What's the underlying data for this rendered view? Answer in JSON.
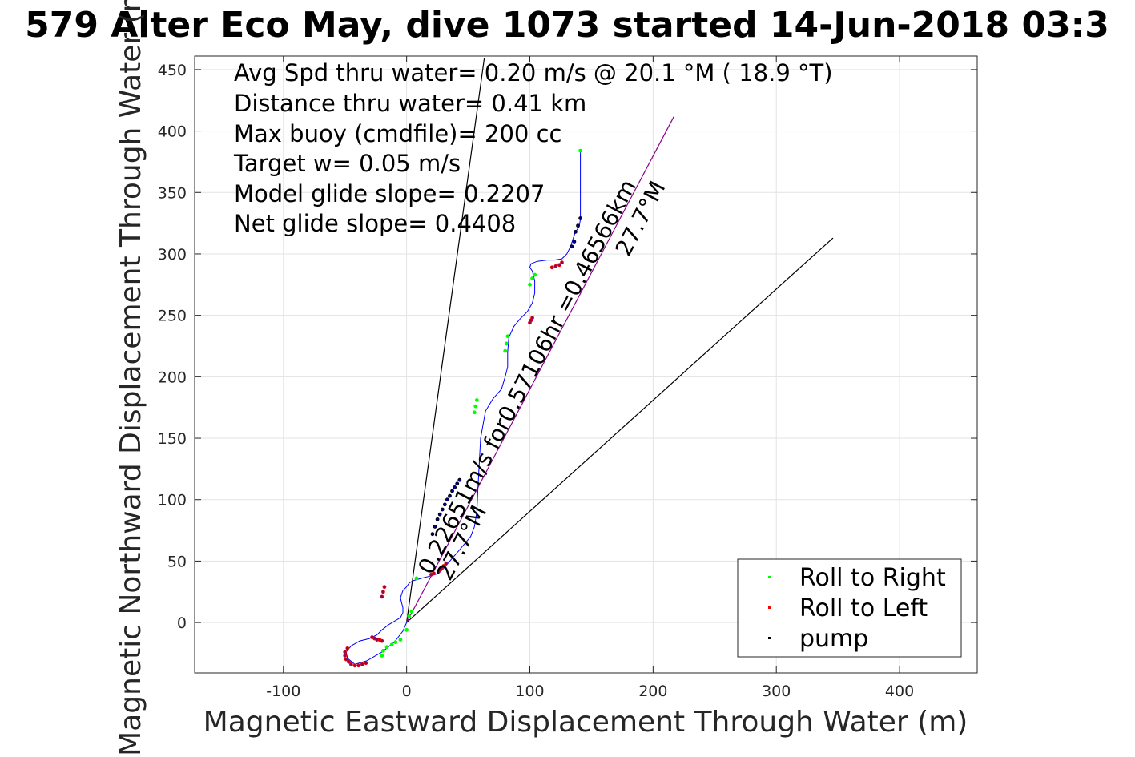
{
  "title": "579 Alter Eco May, dive 1073 started 14-Jun-2018 03:3",
  "chart_data": {
    "type": "scatter",
    "xlabel": "Magnetic Eastward Displacement Through Water (m)",
    "ylabel": "Magnetic Northward Displacement Through Water (m)",
    "xlim": [
      -172,
      463
    ],
    "ylim": [
      -41,
      461
    ],
    "x_ticks": [
      -100,
      0,
      100,
      200,
      300,
      400
    ],
    "y_ticks": [
      0,
      50,
      100,
      150,
      200,
      250,
      300,
      350,
      400,
      450
    ],
    "x_tick_labels": [
      "-100",
      "0",
      "100",
      "200",
      "300",
      "400"
    ],
    "y_tick_labels": [
      "0",
      "50",
      "100",
      "150",
      "200",
      "250",
      "300",
      "350",
      "400",
      "450"
    ],
    "grid": true,
    "legend_position": "bottom-right",
    "stats": [
      "Avg Spd thru water=  0.20 m/s @  20.1 °M ( 18.9 °T)",
      "Distance thru water=  0.41 km",
      "Max buoy (cmdfile)= 200 cc",
      "Target w= 0.05 m/s",
      "Model glide slope= 0.2207",
      "Net glide slope= 0.4408"
    ],
    "track": {
      "color": "#0000ff",
      "x": [
        0,
        -3,
        -10,
        -20,
        -32,
        -42,
        -48,
        -49,
        -45,
        -38,
        -30,
        -24,
        -20,
        -15,
        -10,
        -5,
        -3,
        -3,
        -5,
        -3,
        0,
        2,
        5,
        12,
        20,
        26,
        30,
        35,
        42,
        47,
        52,
        55,
        57,
        58,
        60,
        64,
        70,
        77,
        80,
        82,
        82,
        83,
        87,
        92,
        98,
        102,
        104,
        104,
        102,
        100,
        101,
        106,
        114,
        120,
        126,
        130,
        133,
        135,
        137,
        140,
        141,
        141,
        141
      ],
      "y": [
        0,
        -7,
        -16,
        -24,
        -31,
        -34,
        -29,
        -24,
        -19,
        -15,
        -13,
        -10,
        -6,
        -2,
        1,
        4,
        8,
        12,
        20,
        26,
        29,
        32,
        34,
        36,
        38,
        40,
        44,
        50,
        58,
        64,
        70,
        78,
        90,
        112,
        150,
        172,
        182,
        190,
        200,
        208,
        220,
        232,
        241,
        247,
        253,
        260,
        268,
        278,
        286,
        289,
        292,
        294,
        295,
        295,
        296,
        300,
        306,
        312,
        318,
        322,
        328,
        340,
        384
      ]
    },
    "series": [
      {
        "name": "Roll to Right",
        "color": "#00ff00",
        "x": [
          -5,
          -9,
          -12,
          -16,
          -19,
          -20,
          0,
          2,
          4,
          8,
          55,
          56,
          57,
          80,
          81,
          82,
          100,
          102,
          104,
          141
        ],
        "y": [
          -14,
          -16,
          -18,
          -20,
          -23,
          -27,
          -6,
          5,
          9,
          36,
          171,
          176,
          181,
          221,
          227,
          233,
          275,
          280,
          283,
          384
        ]
      },
      {
        "name": "Roll to Left",
        "color": "#ff0000",
        "x": [
          -20,
          -22,
          -24,
          -26,
          -28,
          -33,
          -36,
          -39,
          -42,
          -45,
          -47,
          -49,
          -50,
          -50,
          -48,
          -18,
          -19,
          -20,
          20,
          22,
          26,
          28,
          30,
          32,
          100,
          101,
          102,
          118,
          121,
          124,
          126
        ],
        "y": [
          -15,
          -14,
          -14,
          -13,
          -12,
          -33,
          -34,
          -35,
          -35,
          -34,
          -32,
          -30,
          -27,
          -24,
          -21,
          29,
          25,
          21,
          39,
          40,
          42,
          44,
          46,
          48,
          244,
          246,
          248,
          289,
          290,
          291,
          293
        ],
        "marker_fill": "#8b0a50"
      },
      {
        "name": "pump",
        "color": "#000000",
        "x": [
          21,
          23,
          25,
          27,
          29,
          31,
          33,
          35,
          37,
          39,
          41,
          43,
          134,
          136,
          137,
          139,
          141
        ],
        "y": [
          72,
          78,
          84,
          88,
          92,
          96,
          100,
          103,
          107,
          110,
          113,
          116,
          306,
          310,
          318,
          323,
          329
        ],
        "marker_fill": "#00008b"
      }
    ],
    "reference_lines": [
      {
        "x": [
          0,
          63
        ],
        "y": [
          0,
          459
        ],
        "color": "#000000"
      },
      {
        "x": [
          0,
          346
        ],
        "y": [
          0,
          313
        ],
        "color": "#000000"
      },
      {
        "x": [
          0,
          217
        ],
        "y": [
          0,
          412
        ],
        "color": "#8b008b"
      }
    ],
    "annotations": [
      {
        "text": "0.22651m/s for0.57106hr =0.46566km",
        "x": 20,
        "y": 38,
        "angle_deg": 62.3
      },
      {
        "text": "27.7°M",
        "x": 35,
        "y": 33,
        "angle_deg": 62.3
      },
      {
        "text": "27.7°M",
        "x": 180,
        "y": 297,
        "angle_deg": 62.3
      }
    ]
  }
}
